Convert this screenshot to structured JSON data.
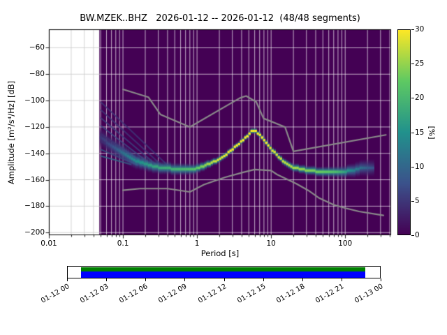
{
  "chart_data": {
    "type": "heatmap",
    "title": "BW.MZEK..BHZ   2026-01-12 -- 2026-01-12  (48/48 segments)",
    "xlabel": "Period [s]",
    "ylabel": "Amplitude [m²/s⁴/Hz] [dB]",
    "xscale": "log",
    "xlim": [
      0.01,
      417
    ],
    "ylim": [
      -202,
      -46
    ],
    "xticks": [
      0.01,
      0.1,
      1,
      10,
      100
    ],
    "xtick_labels": [
      "0.01",
      "0.1",
      "1",
      "10",
      "100"
    ],
    "yticks": [
      -60,
      -80,
      -100,
      -120,
      -140,
      -160,
      -180,
      -200
    ],
    "ytick_labels": [
      "−60",
      "−80",
      "−100",
      "−120",
      "−140",
      "−160",
      "−180",
      "−200"
    ],
    "grid": true,
    "grid_color_over_data": "#ffffff",
    "grid_color_over_blank": "#c9c9c9",
    "background_color": "#440154",
    "data_period_range": [
      0.048,
      250
    ],
    "colorbar": {
      "label": "[%]",
      "min": 0,
      "max": 30,
      "ticks": [
        0,
        5,
        10,
        15,
        20,
        25,
        30
      ],
      "colormap": "viridis",
      "colormap_stops": [
        "#440154",
        "#3b528b",
        "#21918c",
        "#5ec962",
        "#fde725"
      ]
    },
    "psd_mode": {
      "comment": "mode of the probabilistic power spectral density: period [s], level [dB], probability [%], half-width of distribution [dB]",
      "periods": [
        0.05,
        0.07,
        0.1,
        0.14,
        0.2,
        0.3,
        0.45,
        0.65,
        0.9,
        1.2,
        1.6,
        2.2,
        3,
        4,
        5,
        5.7,
        6.5,
        8,
        10,
        13,
        16,
        20,
        25,
        32,
        45,
        60,
        80,
        100,
        130,
        160,
        200,
        250
      ],
      "db": [
        -128,
        -134,
        -140,
        -145,
        -148,
        -150.5,
        -151.5,
        -152.5,
        -152,
        -150,
        -147,
        -143,
        -137,
        -131,
        -125.5,
        -122.3,
        -124,
        -129.5,
        -136.5,
        -143.5,
        -147.5,
        -150.5,
        -152,
        -153,
        -153.8,
        -154,
        -154,
        -153.8,
        -152.8,
        -151.5,
        -151,
        -151.5
      ],
      "percent": [
        5,
        7,
        11,
        14,
        16,
        18,
        19,
        20,
        21,
        24,
        27,
        29,
        30,
        30,
        30,
        30,
        30,
        30,
        29,
        28,
        27,
        26,
        25,
        24,
        23,
        22,
        20,
        17,
        13,
        11,
        9,
        7
      ],
      "halfwidth_db": [
        9,
        8.5,
        8,
        7,
        6,
        5.5,
        5.2,
        5,
        4.5,
        4,
        3.2,
        2.8,
        2.6,
        2.5,
        2.5,
        2.5,
        2.5,
        2.6,
        2.8,
        3,
        3.2,
        3.5,
        3.8,
        4,
        4.2,
        4.4,
        4.6,
        5,
        6,
        6.5,
        7,
        7
      ]
    },
    "fan_lines": [
      {
        "p0": 0.05,
        "db0": -101,
        "p1": 0.4,
        "db1": -149,
        "percent": 5
      },
      {
        "p0": 0.05,
        "db0": -107,
        "p1": 0.34,
        "db1": -149.5,
        "percent": 5
      },
      {
        "p0": 0.05,
        "db0": -113,
        "p1": 0.3,
        "db1": -150,
        "percent": 6
      },
      {
        "p0": 0.05,
        "db0": -119,
        "p1": 0.26,
        "db1": -150,
        "percent": 7
      },
      {
        "p0": 0.05,
        "db0": -125,
        "p1": 0.22,
        "db1": -150,
        "percent": 8
      },
      {
        "p0": 0.05,
        "db0": -131,
        "p1": 0.19,
        "db1": -149.5,
        "percent": 9
      },
      {
        "p0": 0.05,
        "db0": -137,
        "p1": 0.16,
        "db1": -149,
        "percent": 10
      },
      {
        "p0": 0.05,
        "db0": -142,
        "p1": 0.13,
        "db1": -148.5,
        "percent": 11
      }
    ],
    "noise_models": {
      "color": "#8a8a8a",
      "nhnm": {
        "periods": [
          0.1,
          0.22,
          0.32,
          0.8,
          3.8,
          4.6,
          6.3,
          7.9,
          15.4,
          20,
          354.8
        ],
        "db": [
          -91.5,
          -97.4,
          -110.5,
          -120.0,
          -98.0,
          -96.5,
          -101.0,
          -113.5,
          -120.0,
          -138.5,
          -126.0
        ]
      },
      "nlnm": {
        "periods": [
          0.1,
          0.17,
          0.4,
          0.8,
          1.24,
          2.4,
          4.3,
          6,
          10,
          12,
          15.6,
          21.9,
          31.6,
          45,
          70,
          101,
          154,
          328
        ],
        "db": [
          -168.0,
          -166.7,
          -166.7,
          -169.2,
          -163.7,
          -158.1,
          -154.2,
          -152.2,
          -153.0,
          -156.0,
          -159.0,
          -163.0,
          -168.0,
          -174.0,
          -179.0,
          -181.5,
          -184.0,
          -187.0
        ]
      }
    },
    "timeline": {
      "tick_labels": [
        "01-12 00",
        "01-12 03",
        "01-12 06",
        "01-12 09",
        "01-12 12",
        "01-12 15",
        "01-12 18",
        "01-12 21",
        "01-13 00"
      ],
      "coverage_color": "#0000ff",
      "coverage_top_color": "#008000",
      "coverage_fraction": [
        0.042,
        0.952
      ]
    }
  }
}
